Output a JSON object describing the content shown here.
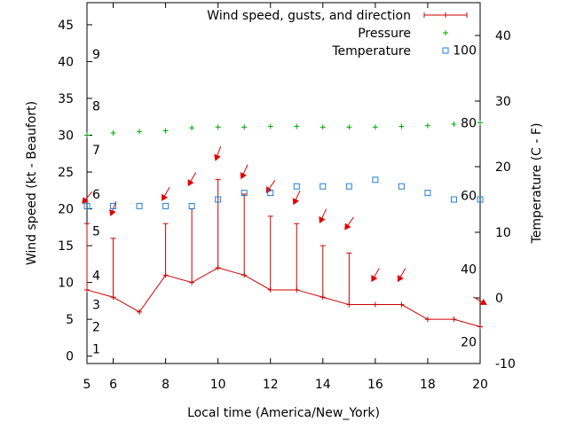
{
  "chart_data": {
    "type": "line",
    "xlabel": "Local time (America/New_York)",
    "ylabel_left": "Wind speed (kt - Beaufort)",
    "ylabel_right": "Temperature (C - F)",
    "x_range": [
      5,
      20
    ],
    "y_left_range": [
      -1,
      48
    ],
    "y_right_range": [
      -10,
      45
    ],
    "x_ticks": [
      6,
      8,
      10,
      12,
      14,
      16,
      18,
      20
    ],
    "x_tick_first_label": "5",
    "y_left_ticks": [
      0,
      5,
      10,
      15,
      20,
      25,
      30,
      35,
      40,
      45
    ],
    "y_right_ticks": [
      -10,
      0,
      10,
      20,
      30,
      40
    ],
    "beaufort_labels": [
      {
        "text": "1",
        "kt": 1
      },
      {
        "text": "2",
        "kt": 4
      },
      {
        "text": "3",
        "kt": 7
      },
      {
        "text": "4",
        "kt": 11
      },
      {
        "text": "5",
        "kt": 17
      },
      {
        "text": "6",
        "kt": 22
      },
      {
        "text": "7",
        "kt": 28
      },
      {
        "text": "8",
        "kt": 34
      },
      {
        "text": "9",
        "kt": 41
      }
    ],
    "fahrenheit_labels": [
      {
        "text": "20",
        "temp_c": -6.7
      },
      {
        "text": "40",
        "temp_c": 4.4
      },
      {
        "text": "60",
        "temp_c": 15.6
      },
      {
        "text": "80",
        "temp_c": 26.7
      },
      {
        "text": "100",
        "temp_c": 37.8
      }
    ],
    "legend": {
      "position": "top-right",
      "entries": [
        {
          "label": "Wind speed, gusts, and direction",
          "key": "wind"
        },
        {
          "label": "Pressure",
          "key": "pressure"
        },
        {
          "label": "Temperature",
          "key": "temperature"
        }
      ]
    },
    "colors": {
      "wind": "#cc0000",
      "pressure": "#00aa00",
      "temperature": "#1f7fd9",
      "direction_arrow": "#e00000"
    },
    "series": [
      {
        "name": "Wind speed, gusts, and direction",
        "axis": "left",
        "x": [
          5,
          6,
          7,
          8,
          9,
          10,
          11,
          12,
          13,
          14,
          15,
          16,
          17,
          18,
          19,
          20
        ],
        "values": [
          9,
          8,
          6,
          11,
          10,
          12,
          11,
          9,
          9,
          8,
          7,
          7,
          7,
          5,
          5,
          4
        ],
        "gusts": [
          18,
          16,
          null,
          18,
          20,
          24,
          22,
          19,
          18,
          15,
          14,
          null,
          null,
          null,
          null,
          null
        ],
        "direction_x": [
          5,
          6,
          8,
          9,
          10,
          11,
          12,
          13,
          14,
          15,
          16,
          17,
          20
        ],
        "direction_y": [
          21.5,
          20.0,
          22.0,
          24.0,
          27.5,
          25.0,
          23.0,
          21.5,
          19.0,
          18.0,
          11.0,
          11.0,
          7.5
        ],
        "direction_deg": [
          40,
          20,
          30,
          30,
          20,
          25,
          35,
          25,
          25,
          35,
          30,
          30,
          300
        ]
      },
      {
        "name": "Pressure",
        "axis": "left",
        "x": [
          5,
          6,
          7,
          8,
          9,
          10,
          11,
          12,
          13,
          14,
          15,
          16,
          17,
          18,
          19,
          20
        ],
        "values": [
          30.0,
          30.3,
          30.5,
          30.6,
          31.0,
          31.1,
          31.1,
          31.2,
          31.2,
          31.1,
          31.1,
          31.1,
          31.2,
          31.3,
          31.5,
          31.7
        ]
      },
      {
        "name": "Temperature",
        "axis": "right",
        "x": [
          5,
          6,
          7,
          8,
          9,
          10,
          11,
          12,
          13,
          14,
          15,
          16,
          17,
          18,
          19,
          20
        ],
        "values": [
          14,
          14,
          14,
          14,
          14,
          15,
          16,
          16,
          17,
          17,
          17,
          18,
          17,
          16,
          15,
          15
        ]
      }
    ]
  }
}
